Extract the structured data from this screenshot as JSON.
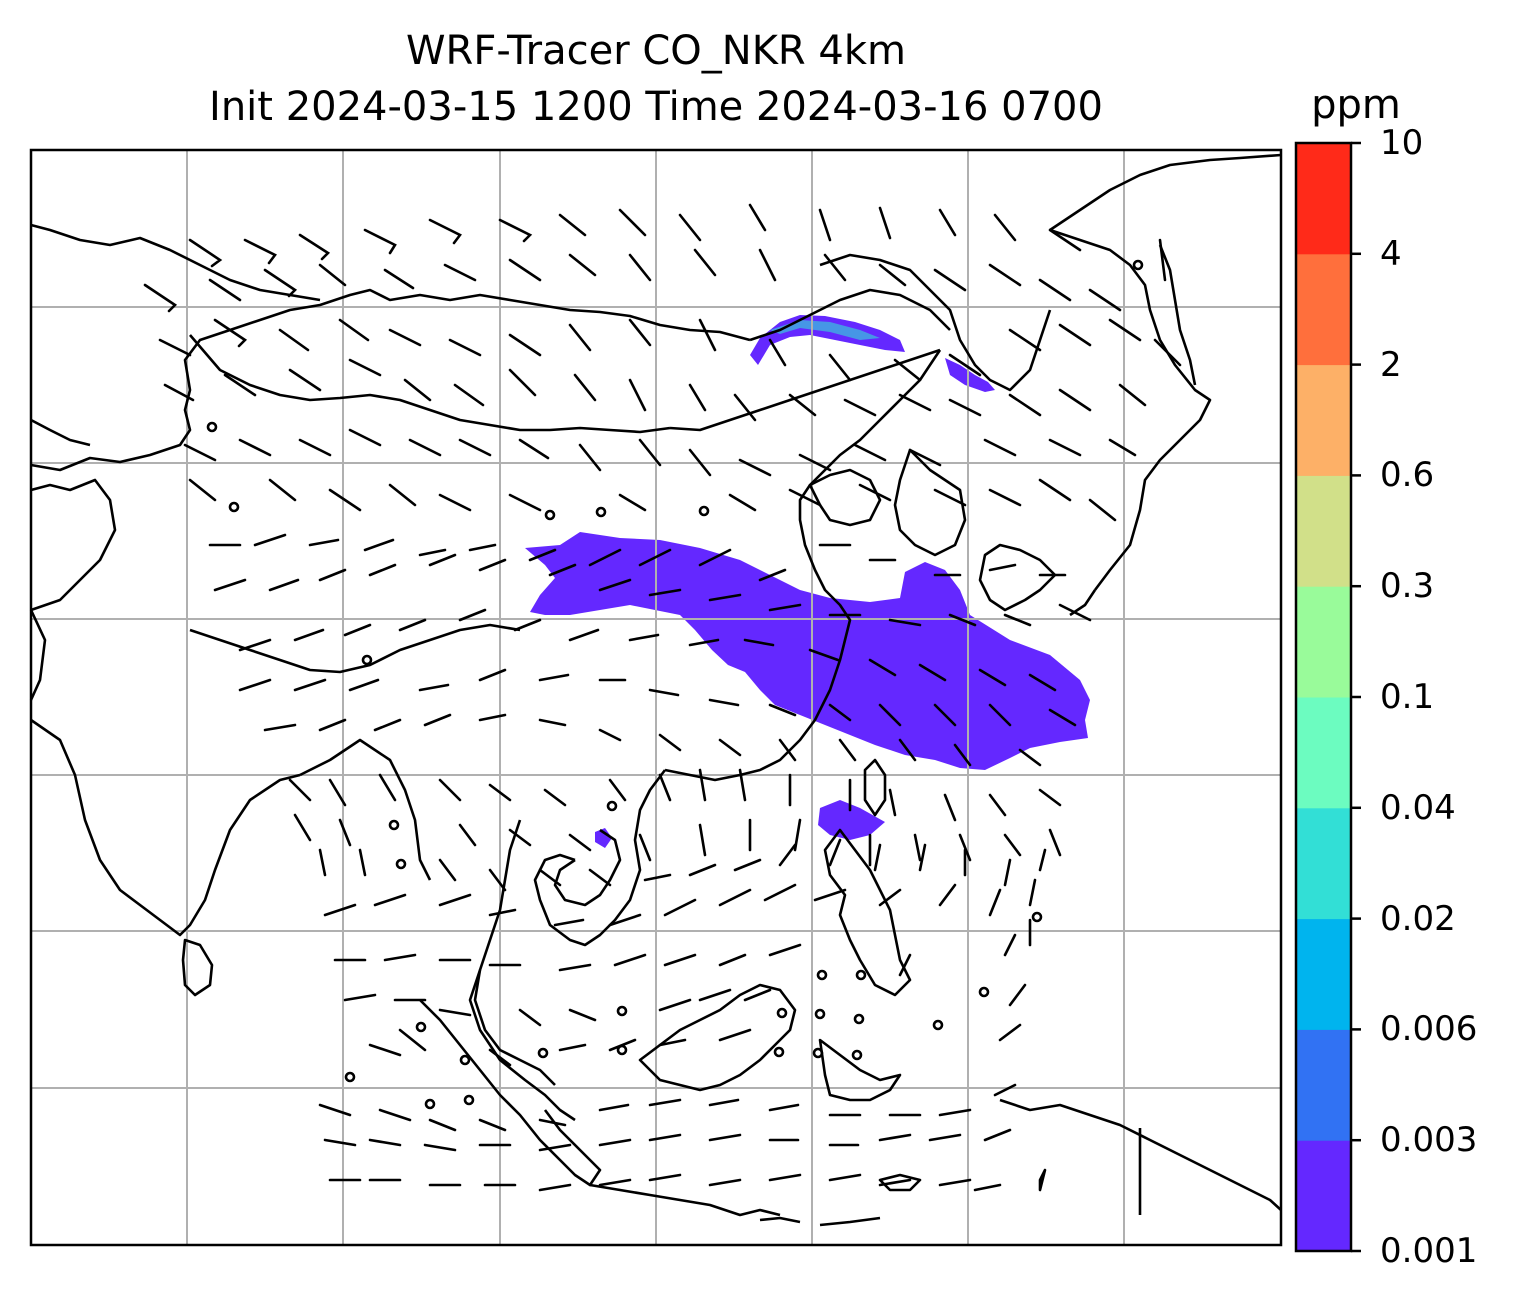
{
  "title": {
    "line1": "WRF-Tracer CO_NKR 4km",
    "line2": "Init 2024-03-15 1200 Time 2024-03-16 0700"
  },
  "map": {
    "variable": "CO_NKR",
    "grid": "4km",
    "plume_color": "#6428ff",
    "coastline_color": "#000000",
    "gridline_color": "#b0b0b0",
    "wind_barbs": "black"
  },
  "colorbar": {
    "unit": "ppm",
    "levels": [
      "0.001",
      "0.003",
      "0.006",
      "0.02",
      "0.04",
      "0.1",
      "0.3",
      "0.6",
      "2",
      "4",
      "10"
    ],
    "colors": [
      "#6428ff",
      "#3172f3",
      "#00b4ee",
      "#32dfd6",
      "#6cfcc0",
      "#99fb9a",
      "#d1e089",
      "#fdb067",
      "#ff6f3c",
      "#ff2a19"
    ]
  }
}
